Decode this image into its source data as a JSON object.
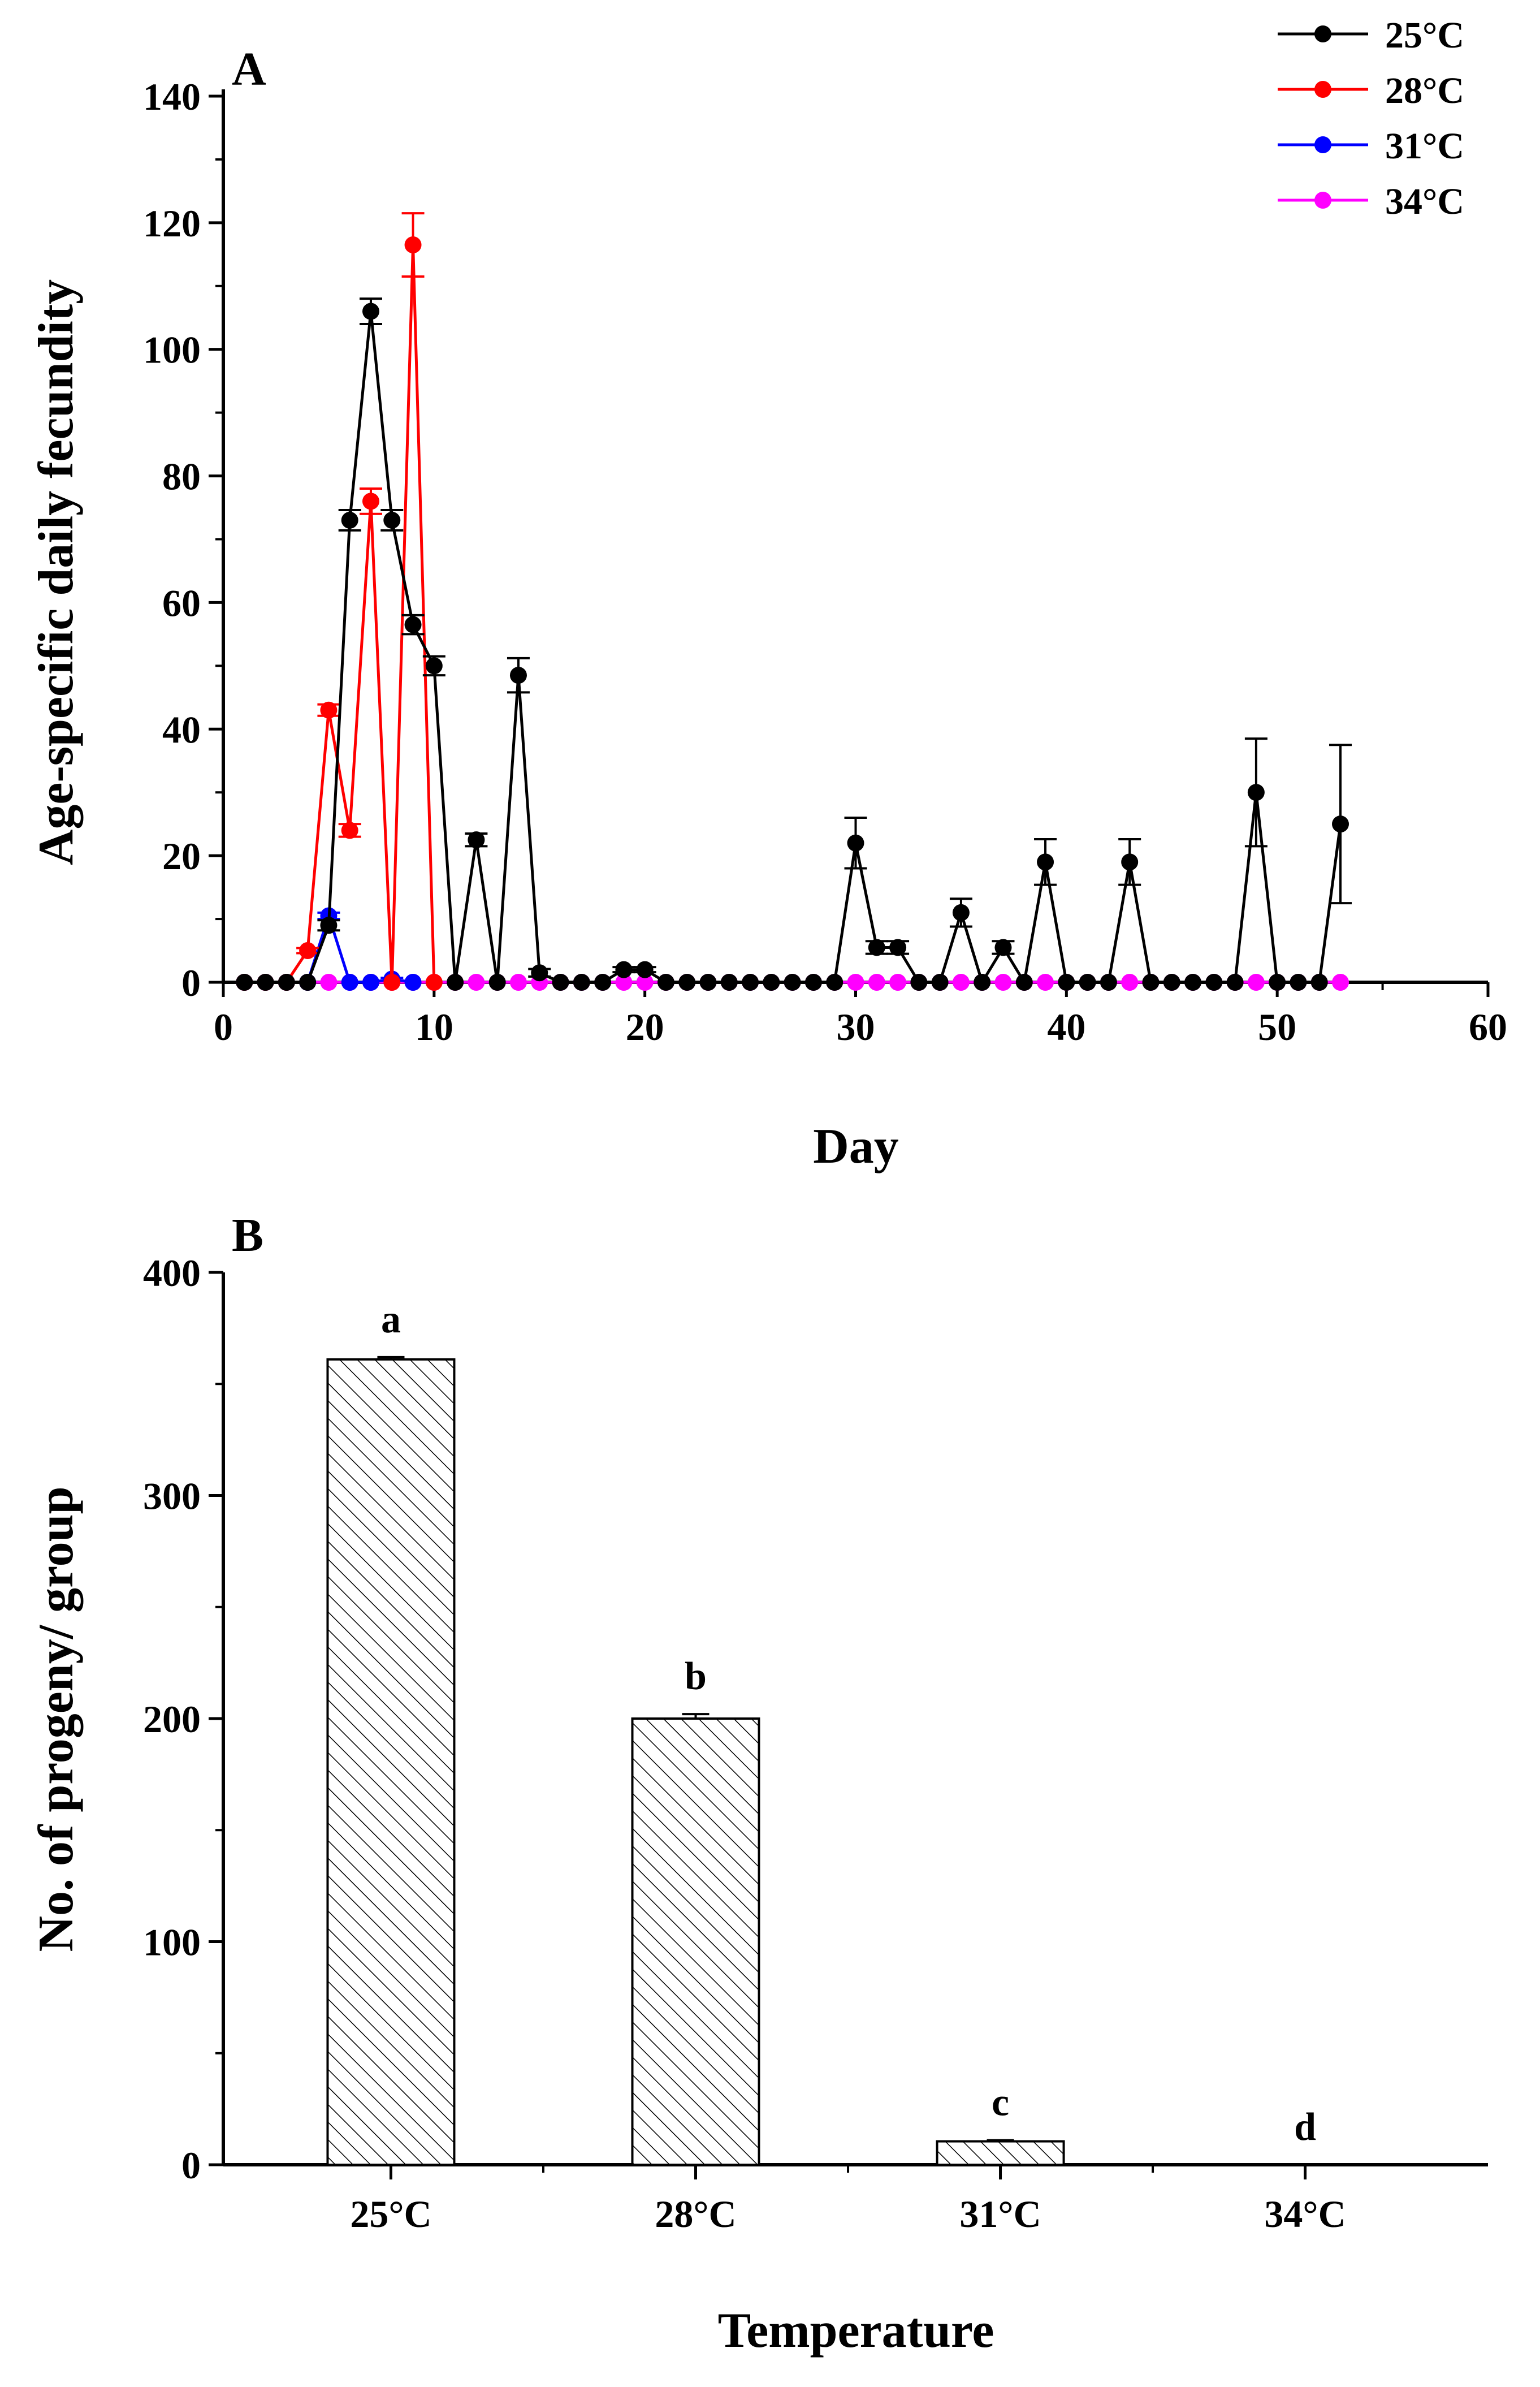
{
  "chart_data": [
    {
      "panel": "A",
      "type": "line",
      "xlabel": "Day",
      "ylabel": "Age-specific daily fecundity",
      "xlim": [
        0,
        60
      ],
      "ylim": [
        0,
        140
      ],
      "xticks": [
        0,
        10,
        20,
        30,
        40,
        50,
        60
      ],
      "yticks": [
        0,
        20,
        40,
        60,
        80,
        100,
        120,
        140
      ],
      "legend_position": "top-right",
      "series": [
        {
          "name": "25°C",
          "color": "#000000",
          "x": [
            1,
            2,
            3,
            4,
            5,
            6,
            7,
            8,
            9,
            10,
            11,
            12,
            13,
            14,
            15,
            16,
            17,
            18,
            19,
            20,
            21,
            22,
            23,
            24,
            25,
            26,
            27,
            28,
            29,
            30,
            31,
            32,
            33,
            34,
            35,
            36,
            37,
            38,
            39,
            40,
            41,
            42,
            43,
            44,
            45,
            46,
            47,
            48,
            49,
            50,
            51,
            52,
            53
          ],
          "y": [
            0,
            0,
            0,
            0,
            9,
            73,
            106,
            73,
            56.5,
            50,
            0,
            22.5,
            0,
            48.5,
            1.5,
            0,
            0,
            0,
            2,
            2,
            0,
            0,
            0,
            0,
            0,
            0,
            0,
            0,
            0,
            22,
            5.5,
            5.5,
            0,
            0,
            11,
            0,
            5.5,
            0,
            19,
            0,
            0,
            0,
            19,
            0,
            0,
            0,
            0,
            0,
            30,
            0,
            0,
            0,
            25
          ],
          "err": [
            0,
            0,
            0,
            0,
            0.8,
            1.6,
            2,
            1.6,
            1.5,
            1.5,
            0,
            1,
            0,
            2.7,
            0.6,
            0,
            0,
            0,
            0.4,
            0.4,
            0,
            0,
            0,
            0,
            0,
            0,
            0,
            0,
            0,
            4,
            1,
            1,
            0,
            0,
            2.2,
            0,
            1,
            0,
            3.6,
            0,
            0,
            0,
            3.6,
            0,
            0,
            0,
            0,
            0,
            8.5,
            0,
            0,
            0,
            12.5
          ]
        },
        {
          "name": "28°C",
          "color": "#ff0000",
          "x": [
            1,
            2,
            3,
            4,
            5,
            6,
            7,
            8,
            9,
            10
          ],
          "y": [
            0,
            0,
            0,
            5,
            43,
            24,
            76,
            0,
            116.5,
            0
          ],
          "err": [
            0,
            0,
            0,
            0.4,
            0.9,
            1,
            2,
            0,
            5,
            0
          ]
        },
        {
          "name": "31°C",
          "color": "#0000ff",
          "x": [
            1,
            2,
            3,
            4,
            5,
            6,
            7,
            8,
            9
          ],
          "y": [
            0,
            0,
            0,
            0,
            10.5,
            0,
            0,
            0.5,
            0
          ],
          "err": [
            0,
            0,
            0,
            0,
            0.5,
            0,
            0,
            0.2,
            0
          ]
        },
        {
          "name": "34°C",
          "color": "#ff00ff",
          "x": [
            1,
            2,
            3,
            4,
            5,
            6,
            7,
            8,
            9,
            10,
            11,
            12,
            13,
            14,
            15,
            16,
            17,
            18,
            19,
            20,
            21,
            22,
            23,
            24,
            25,
            26,
            27,
            28,
            29,
            30,
            31,
            32,
            33,
            34,
            35,
            36,
            37,
            38,
            39,
            40,
            41,
            42,
            43,
            44,
            45,
            46,
            47,
            48,
            49,
            50,
            51,
            52,
            53
          ],
          "y": [
            0,
            0,
            0,
            0,
            0,
            0,
            0,
            0,
            0,
            0,
            0,
            0,
            0,
            0,
            0,
            0,
            0,
            0,
            0,
            0,
            0,
            0,
            0,
            0,
            0,
            0,
            0,
            0,
            0,
            0,
            0,
            0,
            0,
            0,
            0,
            0,
            0,
            0,
            0,
            0,
            0,
            0,
            0,
            0,
            0,
            0,
            0,
            0,
            0,
            0,
            0,
            0,
            0
          ],
          "err": []
        }
      ]
    },
    {
      "panel": "B",
      "type": "bar",
      "xlabel": "Temperature",
      "ylabel": "No. of progeny/ group",
      "ylim": [
        0,
        400
      ],
      "yticks": [
        0,
        100,
        200,
        300,
        400
      ],
      "categories": [
        "25°C",
        "28°C",
        "31°C",
        "34°C"
      ],
      "values": [
        361,
        200,
        10.5,
        0
      ],
      "errors": [
        1,
        2,
        0.5,
        0
      ],
      "significance_letters": [
        "a",
        "b",
        "c",
        "d"
      ],
      "bar_fill": "diagonal-hatch"
    }
  ]
}
